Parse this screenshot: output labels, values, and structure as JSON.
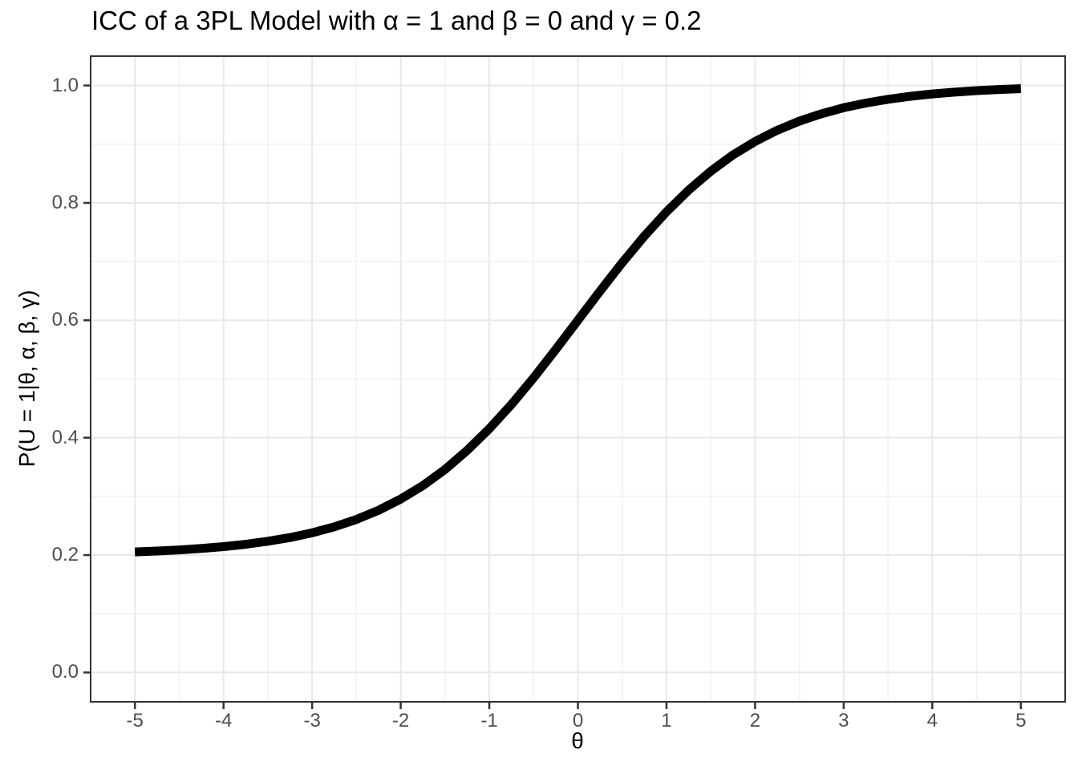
{
  "title": "ICC of a 3PL Model with α = 1 and β = 0 and γ = 0.2",
  "axes": {
    "x_title": "θ",
    "y_title": "P(U = 1|θ, α, β, γ)"
  },
  "colors": {
    "background": "#ffffff",
    "curve": "#000000",
    "grid_major": "#e8e8e8",
    "grid_minor": "#f1f1f1",
    "panel_border": "#333333",
    "tick_mark": "#333333",
    "tick_label": "#4d4d4d",
    "title_text": "#000000"
  },
  "chart_data": {
    "type": "line",
    "title": "ICC of a 3PL Model with α = 1 and β = 0 and γ = 0.2",
    "xlabel": "θ",
    "ylabel": "P(U = 1|θ, α, β, γ)",
    "parameters": {
      "alpha": 1,
      "beta": 0,
      "gamma": 0.2
    },
    "grid": true,
    "legend": false,
    "xlim": [
      -5.5,
      5.5
    ],
    "ylim": [
      -0.05,
      1.05
    ],
    "x_ticks": [
      -5,
      -4,
      -3,
      -2,
      -1,
      0,
      1,
      2,
      3,
      4,
      5
    ],
    "x_tick_labels": [
      "-5",
      "-4",
      "-3",
      "-2",
      "-1",
      "0",
      "1",
      "2",
      "3",
      "4",
      "5"
    ],
    "x_minor_ticks": [
      -4.5,
      -3.5,
      -2.5,
      -1.5,
      -0.5,
      0.5,
      1.5,
      2.5,
      3.5,
      4.5
    ],
    "y_ticks": [
      0.0,
      0.2,
      0.4,
      0.6,
      0.8,
      1.0
    ],
    "y_tick_labels": [
      "0.0",
      "0.2",
      "0.4",
      "0.6",
      "0.8",
      "1.0"
    ],
    "y_minor_ticks": [
      0.1,
      0.3,
      0.5,
      0.7,
      0.9
    ],
    "x": [
      -5,
      -4.75,
      -4.5,
      -4.25,
      -4,
      -3.75,
      -3.5,
      -3.25,
      -3,
      -2.75,
      -2.5,
      -2.25,
      -2,
      -1.75,
      -1.5,
      -1.25,
      -1,
      -0.75,
      -0.5,
      -0.25,
      0,
      0.25,
      0.5,
      0.75,
      1,
      1.25,
      1.5,
      1.75,
      2,
      2.25,
      2.5,
      2.75,
      3,
      3.25,
      3.5,
      3.75,
      4,
      4.25,
      4.5,
      4.75,
      5
    ],
    "y": [
      0.2054,
      0.2069,
      0.2088,
      0.2113,
      0.2144,
      0.2184,
      0.2235,
      0.2299,
      0.2379,
      0.2481,
      0.2607,
      0.2763,
      0.2954,
      0.3184,
      0.3459,
      0.3782,
      0.4152,
      0.4567,
      0.502,
      0.5503,
      0.6,
      0.6497,
      0.698,
      0.7433,
      0.7848,
      0.8218,
      0.8541,
      0.8816,
      0.9046,
      0.9237,
      0.9393,
      0.9519,
      0.9621,
      0.9701,
      0.9765,
      0.9816,
      0.9856,
      0.9887,
      0.9912,
      0.9931,
      0.9946
    ]
  }
}
